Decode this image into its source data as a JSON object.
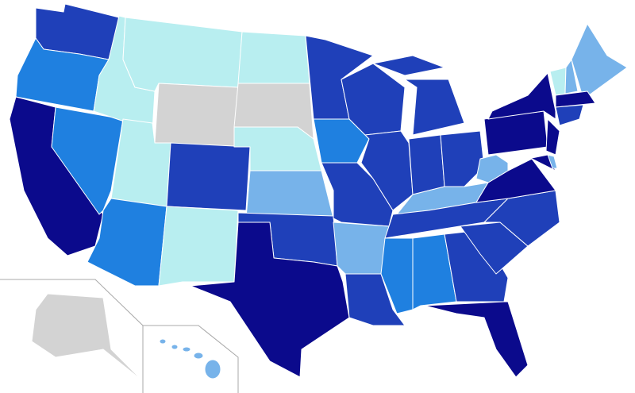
{
  "palette": [
    "#0b0a8c",
    "#1f40b9",
    "#1f80e0",
    "#77b3ea",
    "#b8eef0",
    "#d3d3d3"
  ]
}
